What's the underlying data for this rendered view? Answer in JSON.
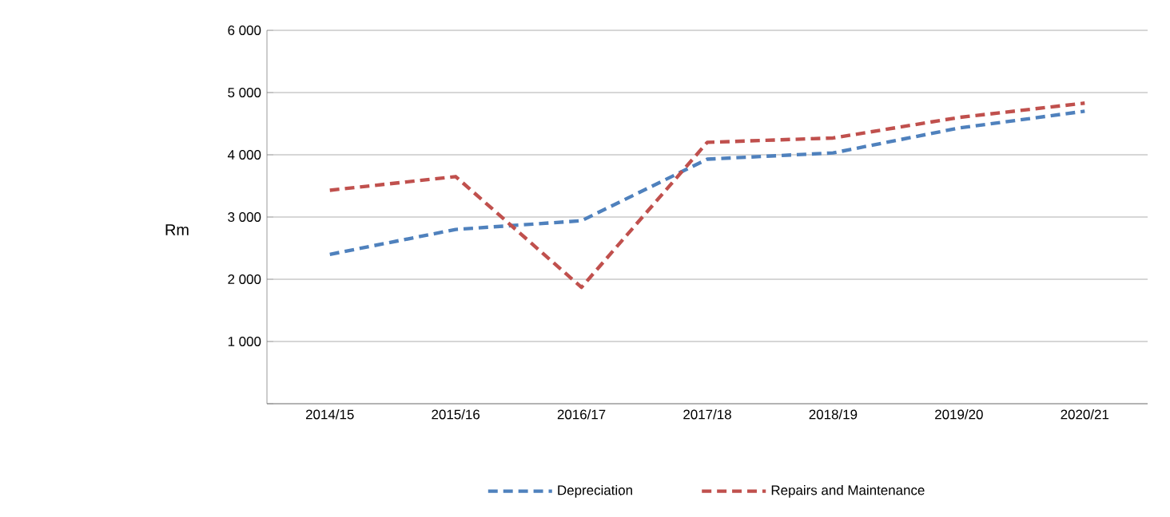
{
  "chart_data": {
    "type": "line",
    "ylabel": "Rm",
    "categories": [
      "2014/15",
      "2015/16",
      "2016/17",
      "2017/18",
      "2018/19",
      "2019/20",
      "2020/21"
    ],
    "series": [
      {
        "name": "Depreciation",
        "color": "#4f81bd",
        "line_style": "dashed",
        "values": [
          2400,
          2800,
          2940,
          3930,
          4030,
          4430,
          4700
        ]
      },
      {
        "name": "Repairs and Maintenance",
        "color": "#c0504d",
        "line_style": "dashed",
        "values": [
          3430,
          3650,
          1870,
          4200,
          4270,
          4600,
          4830
        ]
      }
    ],
    "ylim": [
      0,
      6000
    ],
    "yticks": [
      {
        "value": 0,
        "label": null
      },
      {
        "value": 1000,
        "label": "1 000"
      },
      {
        "value": 2000,
        "label": "2 000"
      },
      {
        "value": 3000,
        "label": "3 000"
      },
      {
        "value": 4000,
        "label": "4 000"
      },
      {
        "value": 5000,
        "label": "5 000"
      },
      {
        "value": 6000,
        "label": "6 000"
      }
    ],
    "grid": "y",
    "legend": "bottom",
    "marker": "none"
  }
}
